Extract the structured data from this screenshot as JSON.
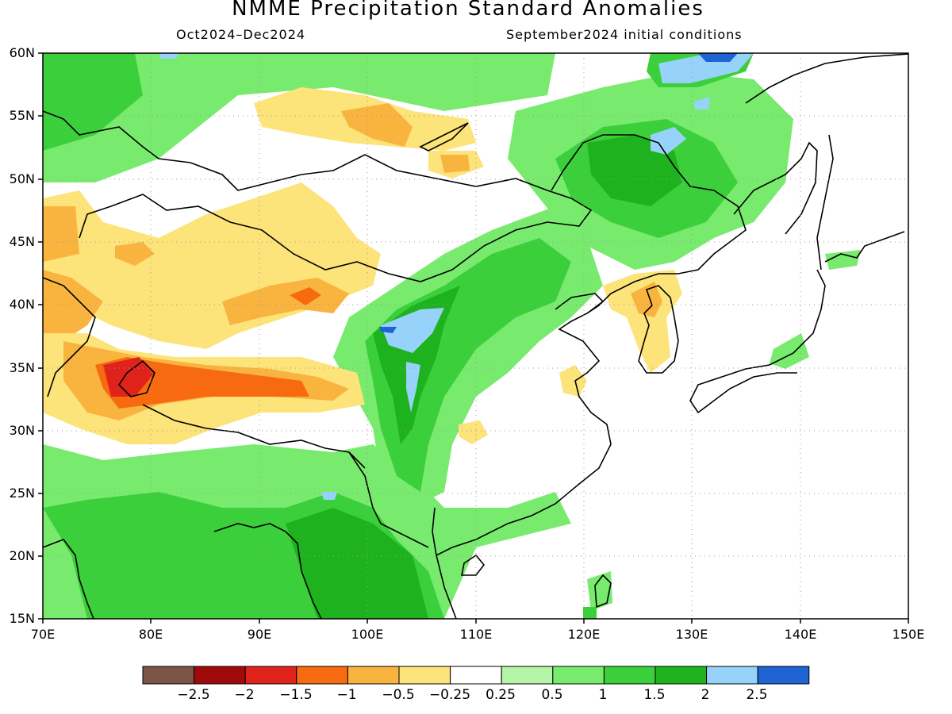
{
  "title": "NMME Precipitation Standard Anomalies",
  "subtitle_left": "Oct2024–Dec2024",
  "subtitle_right": "September2024 initial conditions",
  "lat_labels": [
    "60N",
    "55N",
    "50N",
    "45N",
    "40N",
    "35N",
    "30N",
    "25N",
    "20N",
    "15N"
  ],
  "lon_labels": [
    "70E",
    "80E",
    "90E",
    "100E",
    "110E",
    "120E",
    "130E",
    "140E",
    "150E"
  ],
  "colorbar": {
    "colors": [
      "#7a5548",
      "#a00a0a",
      "#e0231a",
      "#f86a10",
      "#f9b440",
      "#fce37a",
      "#ffffff",
      "#b4f5a8",
      "#78eb6e",
      "#3ccf3c",
      "#1eb31e",
      "#96d2fa",
      "#1e64d2"
    ],
    "labels": [
      "−2.5",
      "−2",
      "−1.5",
      "−1",
      "−0.5",
      "−0.25",
      "0.25",
      "0.5",
      "1",
      "1.5",
      "2",
      "2.5"
    ]
  },
  "map_extent": {
    "lon": [
      70,
      150
    ],
    "lat": [
      15,
      60
    ]
  }
}
